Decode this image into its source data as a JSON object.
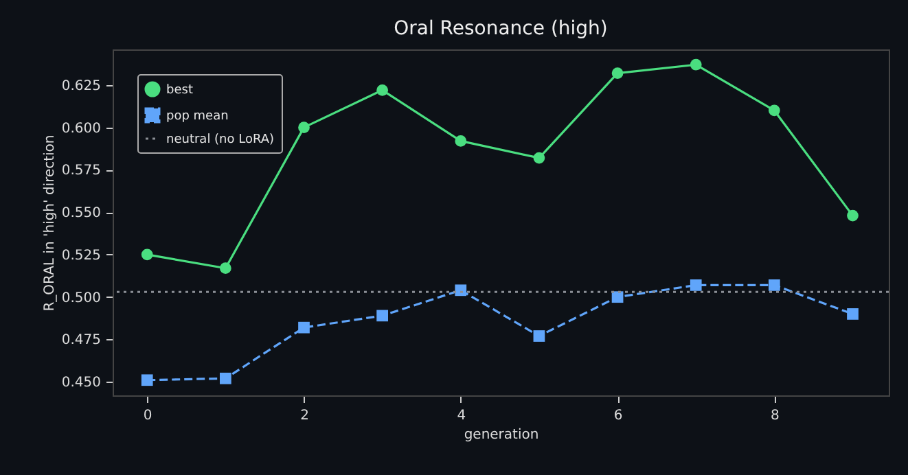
{
  "chart_data": {
    "type": "line",
    "title": "Oral Resonance (high)",
    "xlabel": "generation",
    "ylabel": "R_ORAL in 'high' direction",
    "x": [
      0,
      1,
      2,
      3,
      4,
      5,
      6,
      7,
      8,
      9
    ],
    "series": [
      {
        "name": "best",
        "color": "#4ade80",
        "marker": "circle",
        "line_style": "solid",
        "values": [
          0.525,
          0.517,
          0.6,
          0.622,
          0.592,
          0.582,
          0.632,
          0.637,
          0.61,
          0.548
        ]
      },
      {
        "name": "pop mean",
        "color": "#60a5fa",
        "marker": "square",
        "line_style": "dashed",
        "values": [
          0.451,
          0.452,
          0.482,
          0.489,
          0.504,
          0.477,
          0.5,
          0.507,
          0.507,
          0.49
        ]
      }
    ],
    "ref_lines": [
      {
        "axis": "y",
        "value": 0.503,
        "label": "neutral (no LoRA)",
        "color": "#8b8f96",
        "line_style": "dotted"
      }
    ],
    "xlim": [
      -0.44,
      9.46
    ],
    "xticks": [
      0,
      2,
      4,
      6,
      8
    ],
    "ylim": [
      0.442,
      0.646
    ],
    "yticks": [
      {
        "value": 0.45,
        "label": "0.450"
      },
      0.475,
      {
        "value": 0.5,
        "label": "0.500"
      },
      0.525,
      {
        "value": 0.55,
        "label": "0.550"
      },
      0.575,
      {
        "value": 0.6,
        "label": "0.600"
      },
      0.625
    ],
    "grid": false,
    "legend": "top left"
  }
}
